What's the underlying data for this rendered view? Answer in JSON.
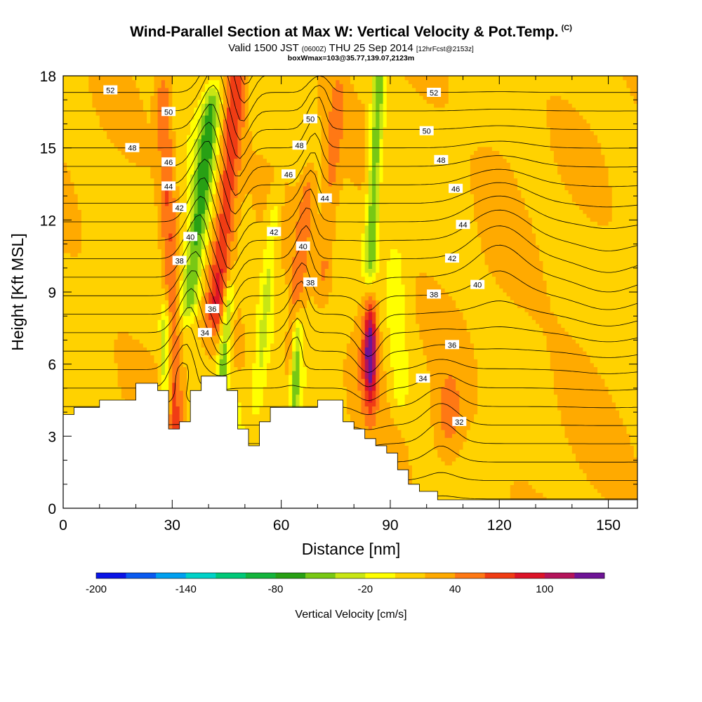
{
  "chart_data": {
    "type": "heatmap",
    "title": "Wind-Parallel Section at Max W: Vertical Velocity & Pot.Temp.",
    "title_mark": "(C)",
    "valid_line": {
      "prefix": "Valid 1500 JST",
      "utc": "(0600Z)",
      "date": "THU 25 Sep 2014",
      "fcst": "[12hrFcst@2153z]"
    },
    "box_wmax": "boxWmax=103@35.77,139.07,2123m",
    "xlabel": "Distance [nm]",
    "ylabel": "Height [Kft MSL]",
    "xlim": [
      0,
      158
    ],
    "ylim": [
      0,
      18
    ],
    "x_ticks": [
      "0",
      "30",
      "60",
      "90",
      "120",
      "150"
    ],
    "y_ticks": [
      "0",
      "3",
      "6",
      "9",
      "12",
      "15",
      "18"
    ],
    "colorbar": {
      "label": "Vertical Velocity [cm/s]",
      "tick_labels": [
        "-200",
        "-140",
        "-80",
        "-20",
        "40",
        "100"
      ],
      "levels": [
        -200,
        -180,
        -160,
        -140,
        -120,
        -100,
        -80,
        -60,
        -40,
        -20,
        0,
        20,
        40,
        60,
        80,
        100,
        120
      ],
      "colors": [
        "#0a14e6",
        "#0a5af0",
        "#00a0f0",
        "#00d2c8",
        "#00c878",
        "#14b43c",
        "#28a014",
        "#78c814",
        "#c8e614",
        "#ffff00",
        "#ffd200",
        "#ffaa00",
        "#ff7814",
        "#f03c14",
        "#dc1428",
        "#b4145a",
        "#6e1496"
      ]
    },
    "terrain": [
      [
        0,
        3.9
      ],
      [
        3,
        3.9
      ],
      [
        3,
        4.2
      ],
      [
        10,
        4.2
      ],
      [
        10,
        4.5
      ],
      [
        20,
        4.5
      ],
      [
        20,
        5.2
      ],
      [
        26,
        5.2
      ],
      [
        26,
        4.9
      ],
      [
        29,
        4.9
      ],
      [
        29,
        3.3
      ],
      [
        32,
        3.3
      ],
      [
        32,
        3.6
      ],
      [
        35,
        3.6
      ],
      [
        35,
        4.9
      ],
      [
        38,
        4.9
      ],
      [
        38,
        5.5
      ],
      [
        45,
        5.5
      ],
      [
        45,
        4.9
      ],
      [
        48,
        4.9
      ],
      [
        48,
        3.3
      ],
      [
        51,
        3.3
      ],
      [
        51,
        2.6
      ],
      [
        54,
        2.6
      ],
      [
        54,
        3.6
      ],
      [
        57,
        3.6
      ],
      [
        57,
        4.2
      ],
      [
        70,
        4.2
      ],
      [
        70,
        4.5
      ],
      [
        77,
        4.5
      ],
      [
        77,
        3.6
      ],
      [
        80,
        3.6
      ],
      [
        80,
        3.3
      ],
      [
        83,
        3.3
      ],
      [
        83,
        2.9
      ],
      [
        86,
        2.9
      ],
      [
        86,
        2.6
      ],
      [
        89,
        2.6
      ],
      [
        89,
        2.3
      ],
      [
        92,
        2.3
      ],
      [
        92,
        1.6
      ],
      [
        95,
        1.6
      ],
      [
        95,
        1.0
      ],
      [
        98,
        1.0
      ],
      [
        98,
        0.7
      ],
      [
        103,
        0.7
      ],
      [
        103,
        0.35
      ],
      [
        158,
        0.35
      ]
    ],
    "vertical_velocity_features": [
      {
        "x": 48,
        "y": 13.0,
        "value": 60
      },
      {
        "x": 84,
        "y": 6.5,
        "value": 103
      },
      {
        "x": 106,
        "y": 3.5,
        "value": 60
      },
      {
        "x": 38,
        "y": 14.0,
        "value": -60
      },
      {
        "x": 45,
        "y": 6.0,
        "value": -80
      },
      {
        "x": 64,
        "y": 6.0,
        "value": -60
      },
      {
        "x": 86,
        "y": 15.0,
        "value": -60
      }
    ],
    "theta_contour_labels": [
      {
        "text": "52",
        "x": 13,
        "y": 17.4
      },
      {
        "text": "50",
        "x": 29,
        "y": 16.5
      },
      {
        "text": "48",
        "x": 19,
        "y": 15.0
      },
      {
        "text": "46",
        "x": 29,
        "y": 14.4
      },
      {
        "text": "44",
        "x": 29,
        "y": 13.4
      },
      {
        "text": "42",
        "x": 32,
        "y": 12.5
      },
      {
        "text": "40",
        "x": 35,
        "y": 11.3
      },
      {
        "text": "38",
        "x": 32,
        "y": 10.3
      },
      {
        "text": "36",
        "x": 41,
        "y": 8.3
      },
      {
        "text": "34",
        "x": 39,
        "y": 7.3
      },
      {
        "text": "50",
        "x": 68,
        "y": 16.2
      },
      {
        "text": "48",
        "x": 65,
        "y": 15.1
      },
      {
        "text": "46",
        "x": 62,
        "y": 13.9
      },
      {
        "text": "44",
        "x": 72,
        "y": 12.9
      },
      {
        "text": "42",
        "x": 58,
        "y": 11.5
      },
      {
        "text": "40",
        "x": 66,
        "y": 10.9
      },
      {
        "text": "38",
        "x": 68,
        "y": 9.4
      },
      {
        "text": "52",
        "x": 102,
        "y": 17.3
      },
      {
        "text": "50",
        "x": 100,
        "y": 15.7
      },
      {
        "text": "48",
        "x": 104,
        "y": 14.5
      },
      {
        "text": "46",
        "x": 108,
        "y": 13.3
      },
      {
        "text": "44",
        "x": 110,
        "y": 11.8
      },
      {
        "text": "42",
        "x": 107,
        "y": 10.4
      },
      {
        "text": "40",
        "x": 114,
        "y": 9.3
      },
      {
        "text": "38",
        "x": 102,
        "y": 8.9
      },
      {
        "text": "36",
        "x": 107,
        "y": 6.8
      },
      {
        "text": "34",
        "x": 99,
        "y": 5.4
      },
      {
        "text": "32",
        "x": 109,
        "y": 3.6
      }
    ]
  }
}
